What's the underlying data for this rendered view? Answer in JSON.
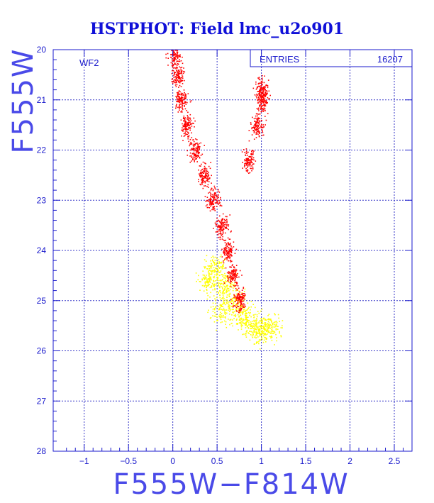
{
  "chart_data": {
    "type": "scatter",
    "title": "HSTPHOT: Field lmc_u2o901",
    "xlabel": "F555W−F814W",
    "ylabel": "F555W",
    "xlim": [
      -1.35,
      2.7
    ],
    "ylim": [
      28,
      20
    ],
    "y_inverted": true,
    "x_ticks": [
      -1,
      -0.5,
      0,
      0.5,
      1,
      1.5,
      2,
      2.5
    ],
    "x_tick_labels": [
      "−1",
      "−0.5",
      "0",
      "0.5",
      "1",
      "1.5",
      "2",
      "2.5"
    ],
    "y_ticks": [
      20,
      21,
      22,
      23,
      24,
      25,
      26,
      27,
      28
    ],
    "y_tick_labels": [
      "20",
      "21",
      "22",
      "23",
      "24",
      "25",
      "26",
      "27",
      "28"
    ],
    "grid": true,
    "panel_label": "WF2",
    "stats_box": {
      "label": "ENTRIES",
      "value": "16207",
      "placement": "top-right"
    },
    "colors": {
      "bright": "#ff0000",
      "faint": "#ffff00",
      "axis": "#1a1acc",
      "title": "#1010d8"
    },
    "series": [
      {
        "color": "#ff0000",
        "description_points": [
          [
            0.02,
            20.1
          ],
          [
            0.05,
            20.5
          ],
          [
            0.1,
            21.0
          ],
          [
            0.15,
            21.5
          ],
          [
            0.25,
            22.0
          ],
          [
            0.35,
            22.5
          ],
          [
            0.45,
            23.0
          ],
          [
            0.55,
            23.5
          ],
          [
            0.62,
            24.0
          ],
          [
            0.68,
            24.5
          ],
          [
            0.75,
            25.0
          ],
          [
            1.0,
            20.8
          ],
          [
            1.0,
            21.0
          ],
          [
            0.95,
            21.5
          ],
          [
            0.85,
            22.2
          ]
        ]
      },
      {
        "color": "#ffff00",
        "description_points": [
          [
            0.5,
            24.3
          ],
          [
            0.6,
            24.7
          ],
          [
            0.7,
            25.0
          ],
          [
            0.8,
            25.3
          ],
          [
            0.9,
            25.5
          ],
          [
            1.0,
            25.6
          ],
          [
            1.1,
            25.5
          ],
          [
            0.4,
            24.6
          ],
          [
            0.55,
            25.2
          ]
        ]
      }
    ]
  }
}
